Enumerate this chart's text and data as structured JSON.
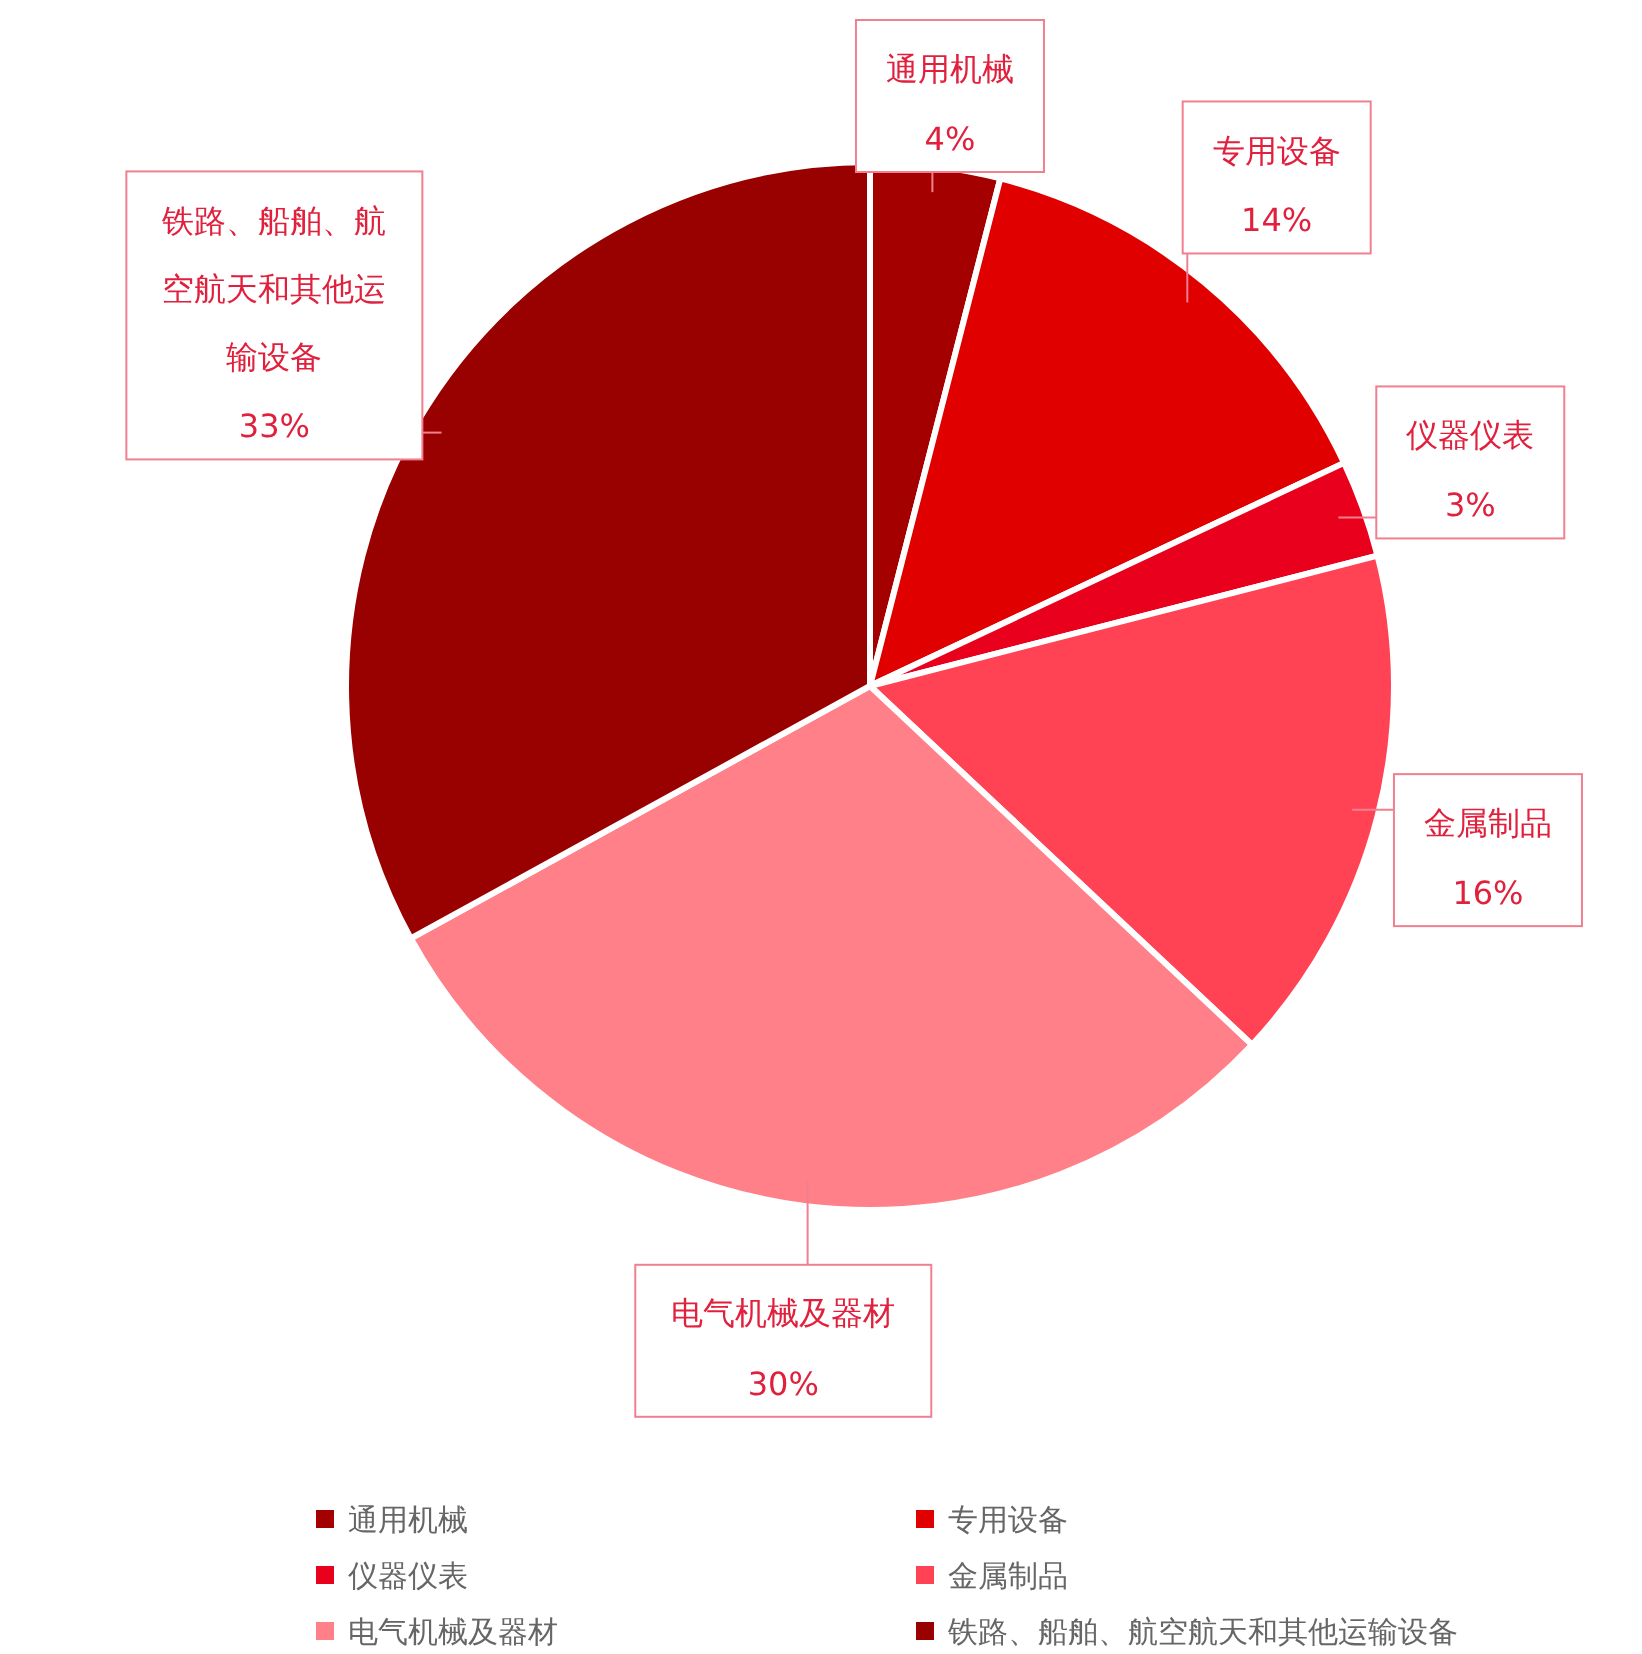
{
  "chart_data": {
    "type": "pie",
    "categories": [
      "通用机械",
      "专用设备",
      "仪器仪表",
      "金属制品",
      "电气机械及器材",
      "铁路、船舶、航空航天和其他运输设备"
    ],
    "values": [
      4,
      14,
      3,
      16,
      30,
      33
    ],
    "colors": [
      "#a50000",
      "#e00000",
      "#e8001c",
      "#ff4354",
      "#ff8088",
      "#990000"
    ],
    "value_labels": [
      "4%",
      "14%",
      "3%",
      "16%",
      "30%",
      "33%"
    ],
    "legend": "bottom"
  }
}
